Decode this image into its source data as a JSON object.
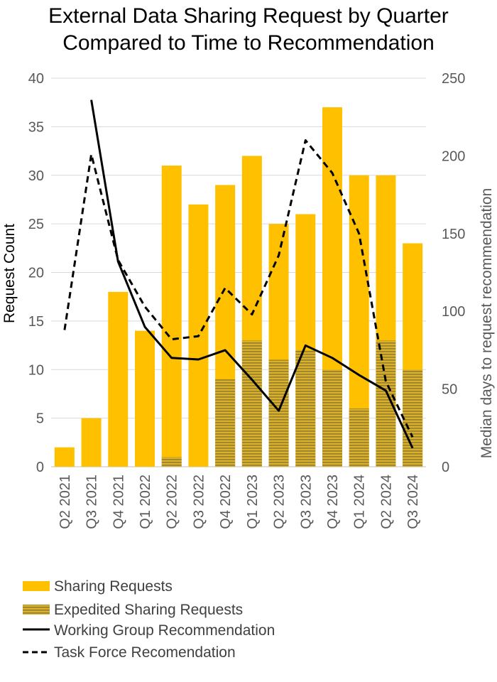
{
  "chart_data": {
    "type": "bar",
    "title_lines": [
      "External Data Sharing Request by Quarter",
      "Compared to Time to Recommendation"
    ],
    "categories": [
      "Q2 2021",
      "Q3 2021",
      "Q4 2021",
      "Q1 2022",
      "Q2 2022",
      "Q3 2022",
      "Q4 2022",
      "Q1 2023",
      "Q2 2023",
      "Q3 2023",
      "Q4 2023",
      "Q1 2024",
      "Q2 2024",
      "Q3 2024"
    ],
    "ylabel": "Request Count",
    "y2label": "Median days to request recommendation",
    "ylim": [
      0,
      40
    ],
    "y2lim": [
      0,
      250
    ],
    "yticks": [
      "0",
      "5",
      "10",
      "15",
      "20",
      "25",
      "30",
      "35",
      "40"
    ],
    "y2ticks": [
      "0",
      "50",
      "100",
      "150",
      "200",
      "250"
    ],
    "grid": true,
    "legend_position": "bottom",
    "series": [
      {
        "name": "Sharing Requests",
        "type": "bar",
        "axis": "left",
        "color": "#FFC000",
        "values": [
          2,
          5,
          18,
          14,
          31,
          27,
          29,
          32,
          25,
          26,
          37,
          30,
          30,
          23
        ]
      },
      {
        "name": "Expedited Sharing Requests",
        "type": "bar-overlay",
        "axis": "left",
        "color": "#C9A227",
        "stripe_color": "#7F6A2F",
        "values": [
          0,
          0,
          0,
          0,
          1,
          0,
          9,
          13,
          11,
          12,
          10,
          6,
          13,
          10
        ]
      },
      {
        "name": "Working Group Recommendation",
        "type": "line",
        "axis": "right",
        "color": "#000000",
        "dash": "solid",
        "values": [
          null,
          236,
          132,
          90,
          70,
          69,
          75,
          56,
          36,
          78,
          70,
          59,
          49,
          12
        ]
      },
      {
        "name": "Task Force Recomendation",
        "type": "line",
        "axis": "right",
        "color": "#000000",
        "dash": "dashed",
        "values": [
          88,
          201,
          133,
          103,
          82,
          84,
          115,
          98,
          136,
          210,
          189,
          150,
          55,
          19
        ]
      }
    ]
  }
}
